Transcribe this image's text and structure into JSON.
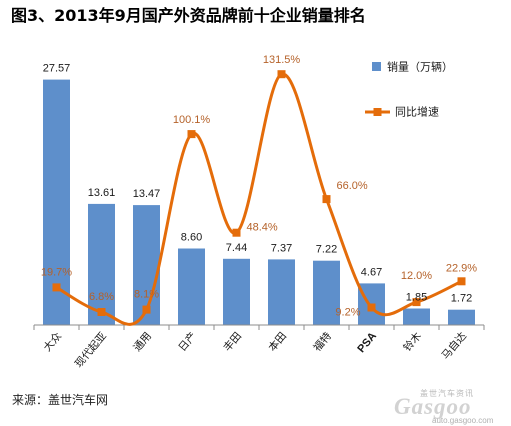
{
  "chart_data": {
    "type": "bar",
    "title": "图3、2013年9月国产外资品牌前十企业销量排名",
    "categories": [
      "大众",
      "现代起亚",
      "通用",
      "日产",
      "丰田",
      "本田",
      "福特",
      "PSA",
      "铃木",
      "马自达"
    ],
    "series": [
      {
        "name": "销量（万辆）",
        "type": "bar",
        "values": [
          27.57,
          13.61,
          13.47,
          8.6,
          7.44,
          7.37,
          7.22,
          4.67,
          1.85,
          1.72
        ],
        "data_labels": [
          "27.57",
          "13.61",
          "13.47",
          "8.60",
          "7.44",
          "7.37",
          "7.22",
          "4.67",
          "1.85",
          "1.72"
        ]
      },
      {
        "name": "同比增速",
        "type": "line",
        "smooth": true,
        "values": [
          19.7,
          6.8,
          8.1,
          100.1,
          48.4,
          131.5,
          66.0,
          9.2,
          12.0,
          22.9
        ],
        "data_labels": [
          "19.7%",
          "6.8%",
          "8.1%",
          "100.1%",
          "48.4%",
          "131.5%",
          "66.0%",
          "9.2%",
          "12.0%",
          "22.9%"
        ]
      }
    ],
    "ylim": [
      0,
      30
    ],
    "y2lim": [
      0,
      140
    ],
    "y_axis_visible": false,
    "grid": false,
    "legend": "right"
  },
  "source": "来源：盖世汽车网",
  "watermark": {
    "text": "盖世汽车资讯",
    "logo": "Gasgoo",
    "url": "auto.gasgoo.com"
  },
  "colors": {
    "bar": "#5E8FCB",
    "line": "#E46C0A",
    "growth_label": "#B5622A",
    "axis": "#8C8C8C"
  }
}
